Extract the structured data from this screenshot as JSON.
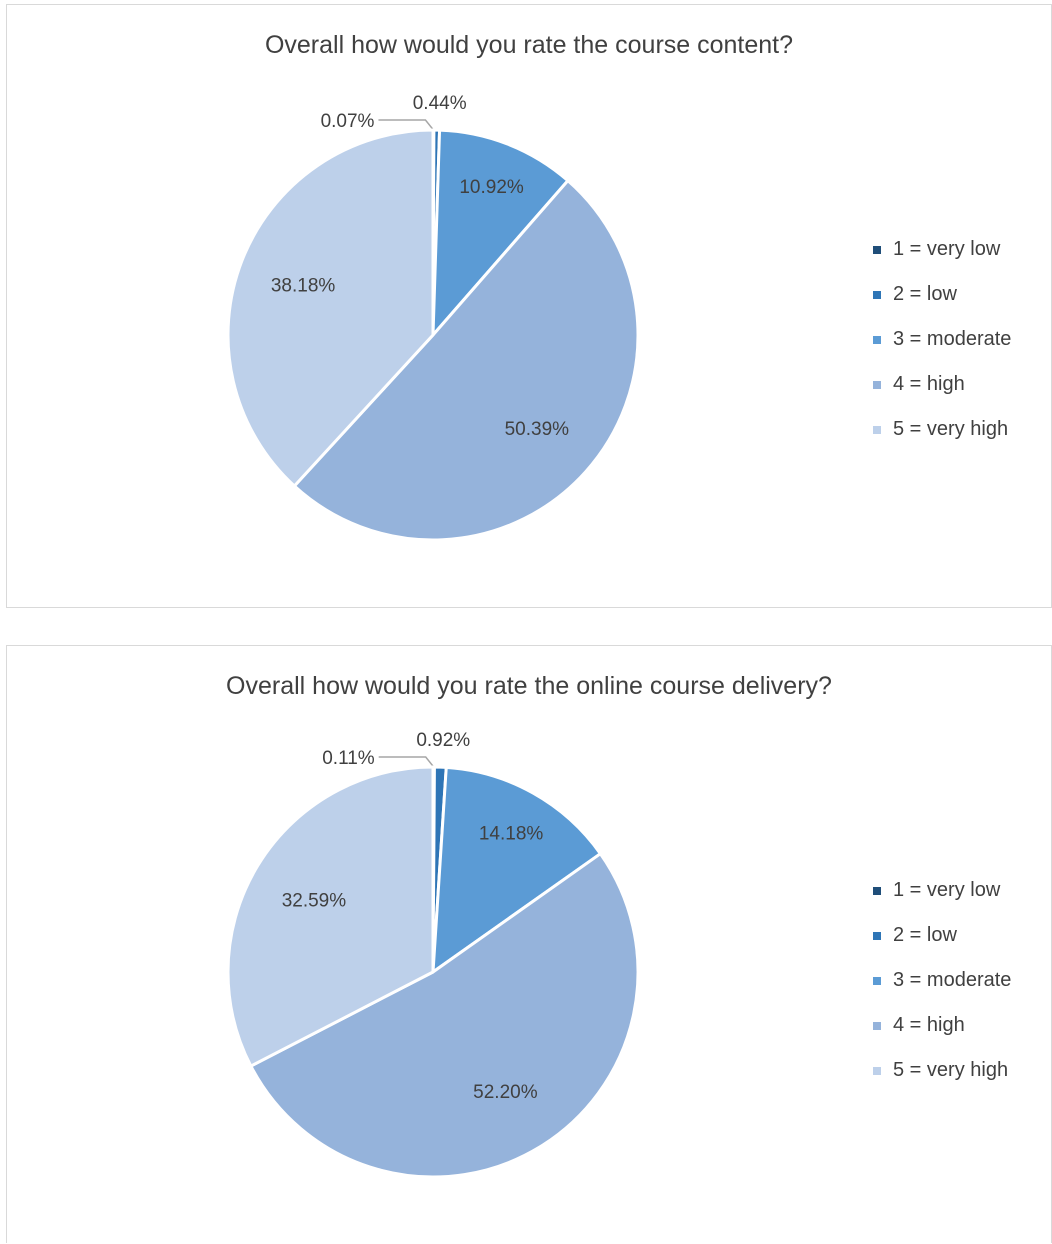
{
  "chart_data": [
    {
      "type": "pie",
      "title": "Overall how would you rate the course content?",
      "categories": [
        "1 = very low",
        "2 = low",
        "3 = moderate",
        "4 = high",
        "5 = very high"
      ],
      "values": [
        0.07,
        0.44,
        10.92,
        50.39,
        38.18
      ],
      "data_labels": [
        "0.07%",
        "0.44%",
        "10.92%",
        "50.39%",
        "38.18%"
      ],
      "colors": [
        "#1f4e79",
        "#2e75b6",
        "#5b9bd5",
        "#95b3db",
        "#bdd0ea"
      ],
      "legend_position": "right"
    },
    {
      "type": "pie",
      "title": "Overall how would you rate the online course delivery?",
      "categories": [
        "1 = very low",
        "2 = low",
        "3 = moderate",
        "4 = high",
        "5 = very high"
      ],
      "values": [
        0.11,
        0.92,
        14.18,
        52.2,
        32.59
      ],
      "data_labels": [
        "0.11%",
        "0.92%",
        "14.18%",
        "52.20%",
        "32.59%"
      ],
      "colors": [
        "#1f4e79",
        "#2e75b6",
        "#5b9bd5",
        "#95b3db",
        "#bdd0ea"
      ],
      "legend_position": "right"
    }
  ]
}
